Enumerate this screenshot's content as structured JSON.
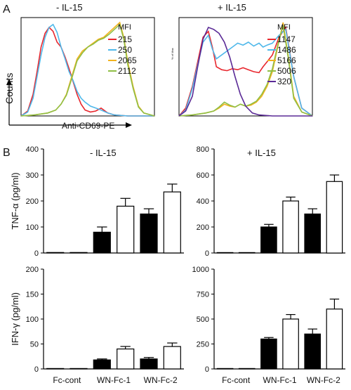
{
  "panels": {
    "a_letter": "A",
    "b_letter": "B"
  },
  "colors": {
    "red": "#e8262d",
    "blue": "#4fb8ea",
    "orange": "#f2b31e",
    "green": "#8fbf45",
    "purple": "#5a2a96",
    "bar_filled": "#000000",
    "bar_open": "#ffffff"
  },
  "chart_data": [
    {
      "id": "hist-minus",
      "type": "line",
      "title": "- IL-15",
      "ylabel": "Counts",
      "xlabel": "Anti-CD69-PE",
      "legend_title": "MFI",
      "legend_position": "top-right",
      "xlim": [
        0,
        100
      ],
      "ylim": [
        0,
        100
      ],
      "series": [
        {
          "name": "215",
          "color": "#e8262d",
          "x": [
            0,
            5,
            9,
            12,
            15,
            18,
            21,
            24,
            27,
            30,
            33,
            36,
            39,
            42,
            45,
            48,
            52,
            56,
            60,
            65,
            70,
            80,
            100
          ],
          "y": [
            0,
            5,
            22,
            45,
            70,
            84,
            90,
            86,
            75,
            70,
            60,
            48,
            35,
            22,
            12,
            6,
            4,
            5,
            8,
            3,
            1,
            0,
            0
          ]
        },
        {
          "name": "250",
          "color": "#4fb8ea",
          "x": [
            0,
            5,
            9,
            12,
            15,
            18,
            21,
            24,
            27,
            30,
            33,
            36,
            39,
            42,
            45,
            48,
            52,
            56,
            60,
            65,
            70,
            80,
            100
          ],
          "y": [
            0,
            4,
            18,
            40,
            62,
            80,
            90,
            93,
            85,
            70,
            58,
            45,
            36,
            25,
            18,
            14,
            10,
            8,
            6,
            3,
            1,
            0,
            0
          ]
        },
        {
          "name": "2065",
          "color": "#f2b31e",
          "x": [
            0,
            10,
            20,
            26,
            30,
            34,
            38,
            42,
            46,
            50,
            54,
            58,
            62,
            66,
            70,
            74,
            77,
            80,
            84,
            88,
            92,
            100
          ],
          "y": [
            0,
            1,
            3,
            6,
            12,
            22,
            40,
            58,
            66,
            70,
            74,
            78,
            80,
            85,
            90,
            95,
            80,
            55,
            30,
            10,
            3,
            0
          ]
        },
        {
          "name": "2112",
          "color": "#8fbf45",
          "x": [
            0,
            10,
            20,
            26,
            30,
            34,
            38,
            42,
            46,
            50,
            54,
            58,
            62,
            66,
            70,
            74,
            77,
            80,
            84,
            88,
            92,
            100
          ],
          "y": [
            0,
            1,
            3,
            6,
            12,
            21,
            38,
            56,
            64,
            70,
            73,
            77,
            79,
            83,
            88,
            93,
            78,
            52,
            28,
            9,
            3,
            0
          ]
        }
      ]
    },
    {
      "id": "hist-plus",
      "type": "line",
      "title": "+ IL-15",
      "ylabel": "% of Max",
      "legend_title": "MFI",
      "legend_position": "top-right",
      "xlim": [
        0,
        100
      ],
      "ylim": [
        0,
        100
      ],
      "series": [
        {
          "name": "1147",
          "color": "#e8262d",
          "x": [
            0,
            5,
            10,
            14,
            18,
            22,
            25,
            28,
            32,
            36,
            40,
            44,
            48,
            52,
            56,
            60,
            63,
            66,
            70,
            75,
            80,
            86,
            92,
            100
          ],
          "y": [
            0,
            8,
            30,
            55,
            80,
            86,
            70,
            50,
            47,
            46,
            48,
            47,
            49,
            47,
            45,
            44,
            50,
            55,
            62,
            80,
            90,
            40,
            8,
            0
          ]
        },
        {
          "name": "1486",
          "color": "#4fb8ea",
          "x": [
            0,
            5,
            10,
            14,
            18,
            22,
            25,
            28,
            32,
            36,
            40,
            44,
            48,
            52,
            56,
            60,
            63,
            66,
            70,
            75,
            80,
            86,
            92,
            100
          ],
          "y": [
            0,
            6,
            28,
            52,
            75,
            82,
            68,
            58,
            62,
            66,
            70,
            74,
            72,
            75,
            71,
            74,
            70,
            72,
            74,
            82,
            88,
            40,
            8,
            0
          ]
        },
        {
          "name": "5166",
          "color": "#f2b31e",
          "x": [
            0,
            10,
            20,
            26,
            30,
            34,
            38,
            42,
            46,
            50,
            54,
            58,
            62,
            66,
            70,
            74,
            78,
            82,
            86,
            92,
            100
          ],
          "y": [
            0,
            1,
            3,
            5,
            8,
            12,
            10,
            9,
            12,
            10,
            11,
            14,
            20,
            30,
            45,
            70,
            95,
            60,
            20,
            4,
            0
          ]
        },
        {
          "name": "5006",
          "color": "#8fbf45",
          "x": [
            0,
            10,
            20,
            26,
            30,
            34,
            38,
            42,
            46,
            50,
            54,
            58,
            62,
            66,
            70,
            74,
            78,
            82,
            86,
            92,
            100
          ],
          "y": [
            0,
            1,
            3,
            5,
            9,
            14,
            11,
            9,
            12,
            10,
            12,
            15,
            22,
            32,
            48,
            72,
            92,
            58,
            18,
            4,
            0
          ]
        },
        {
          "name": "320",
          "color": "#5a2a96",
          "x": [
            0,
            5,
            10,
            14,
            18,
            22,
            26,
            30,
            34,
            38,
            42,
            46,
            50,
            55,
            60,
            70,
            100
          ],
          "y": [
            0,
            5,
            20,
            50,
            78,
            90,
            88,
            84,
            75,
            60,
            40,
            22,
            10,
            3,
            1,
            0,
            0
          ]
        }
      ]
    },
    {
      "id": "bar-tnf-minus",
      "type": "bar",
      "title": "- IL-15",
      "ylabel": "TNF-α (pg/ml)",
      "ylim": [
        0,
        400
      ],
      "yticks": [
        0,
        100,
        200,
        300,
        400
      ],
      "categories": [
        "Fc-cont",
        "",
        "WN-Fc-1",
        "",
        "WN-Fc-2",
        ""
      ],
      "bars": [
        {
          "value": 2,
          "error": 0,
          "fill": "open"
        },
        {
          "value": 2,
          "error": 0,
          "fill": "open"
        },
        {
          "value": 80,
          "error": 20,
          "fill": "filled"
        },
        {
          "value": 180,
          "error": 30,
          "fill": "open"
        },
        {
          "value": 150,
          "error": 20,
          "fill": "filled"
        },
        {
          "value": 235,
          "error": 30,
          "fill": "open"
        }
      ]
    },
    {
      "id": "bar-tnf-plus",
      "type": "bar",
      "title": "+ IL-15",
      "ylim": [
        0,
        800
      ],
      "yticks": [
        0,
        200,
        400,
        600,
        800
      ],
      "categories": [
        "Fc-cont",
        "",
        "WN-Fc-1",
        "",
        "WN-Fc-2",
        ""
      ],
      "bars": [
        {
          "value": 3,
          "error": 0,
          "fill": "open"
        },
        {
          "value": 3,
          "error": 0,
          "fill": "open"
        },
        {
          "value": 200,
          "error": 20,
          "fill": "filled"
        },
        {
          "value": 400,
          "error": 30,
          "fill": "open"
        },
        {
          "value": 300,
          "error": 40,
          "fill": "filled"
        },
        {
          "value": 550,
          "error": 50,
          "fill": "open"
        }
      ]
    },
    {
      "id": "bar-ifn-minus",
      "type": "bar",
      "ylabel": "IFN-γ (pg/ml)",
      "ylim": [
        0,
        200
      ],
      "yticks": [
        0,
        50,
        100,
        150,
        200
      ],
      "categories": [
        "Fc-cont",
        "",
        "WN-Fc-1",
        "",
        "WN-Fc-2",
        ""
      ],
      "xtick_labels": [
        "Fc-cont",
        "WN-Fc-1",
        "WN-Fc-2"
      ],
      "bars": [
        {
          "value": 0,
          "error": 0,
          "fill": "open"
        },
        {
          "value": 0,
          "error": 0,
          "fill": "open"
        },
        {
          "value": 18,
          "error": 2,
          "fill": "filled"
        },
        {
          "value": 40,
          "error": 5,
          "fill": "open"
        },
        {
          "value": 20,
          "error": 3,
          "fill": "filled"
        },
        {
          "value": 45,
          "error": 7,
          "fill": "open"
        }
      ]
    },
    {
      "id": "bar-ifn-plus",
      "type": "bar",
      "ylim": [
        0,
        1000
      ],
      "yticks": [
        0,
        250,
        500,
        750,
        1000
      ],
      "categories": [
        "Fc-cont",
        "",
        "WN-Fc-1",
        "",
        "WN-Fc-2",
        ""
      ],
      "xtick_labels": [
        "Fc-cont",
        "WN-Fc-1",
        "WN-Fc-2"
      ],
      "bars": [
        {
          "value": 3,
          "error": 0,
          "fill": "open"
        },
        {
          "value": 3,
          "error": 0,
          "fill": "open"
        },
        {
          "value": 300,
          "error": 15,
          "fill": "filled"
        },
        {
          "value": 500,
          "error": 45,
          "fill": "open"
        },
        {
          "value": 350,
          "error": 50,
          "fill": "filled"
        },
        {
          "value": 600,
          "error": 100,
          "fill": "open"
        }
      ]
    }
  ]
}
